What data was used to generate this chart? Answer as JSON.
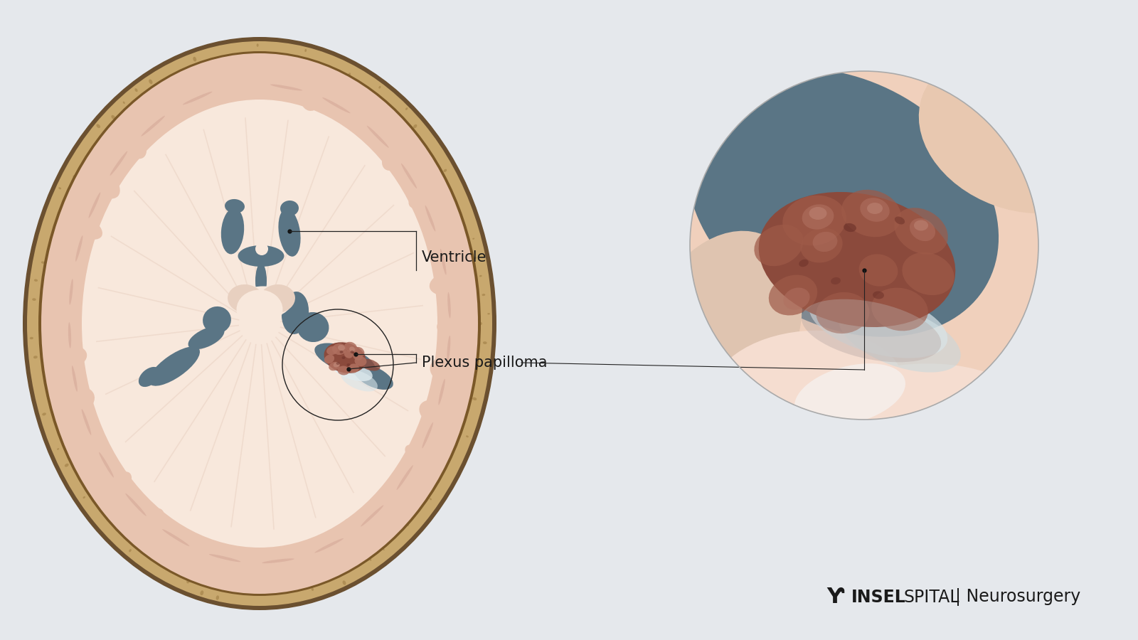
{
  "bg": "#e5e8ec",
  "skull_outer": "#c8a86e",
  "skull_inner": "#b09050",
  "skull_dark": "#6b5030",
  "brain_pink": "#e8c4b0",
  "brain_light": "#f0d4c4",
  "brain_pale": "#f5ddd0",
  "brain_sulcus": "#d4a898",
  "brain_deep": "#c8a090",
  "wm_color": "#f2ddd0",
  "wm_light": "#f8e8dc",
  "wm_stripe": "#e8cfc0",
  "ventricle": "#5a7585",
  "ventricle_light": "#6a8595",
  "tumor_base": "#8b4a3c",
  "tumor_mid": "#9e5a48",
  "tumor_light": "#b07060",
  "tumor_pale": "#c08878",
  "tumor_dark": "#6a3028",
  "tissue_pink": "#f0d0bc",
  "tissue_light": "#f5ddd0",
  "tissue_peach": "#e8c4b0",
  "inset_bg": "#f0d8c8",
  "blue_gray": "#5a7585",
  "white_highlight": "#f8f0e8",
  "label_ventricle": "Ventricle",
  "label_papilloma": "Plexus papilloma",
  "text_color": "#1a1a1a",
  "label_fontsize": 15,
  "logo_bold": "INSEL",
  "logo_light": "SPITAL",
  "logo_neuro": "| Neurosurgery",
  "logo_fontsize": 17
}
